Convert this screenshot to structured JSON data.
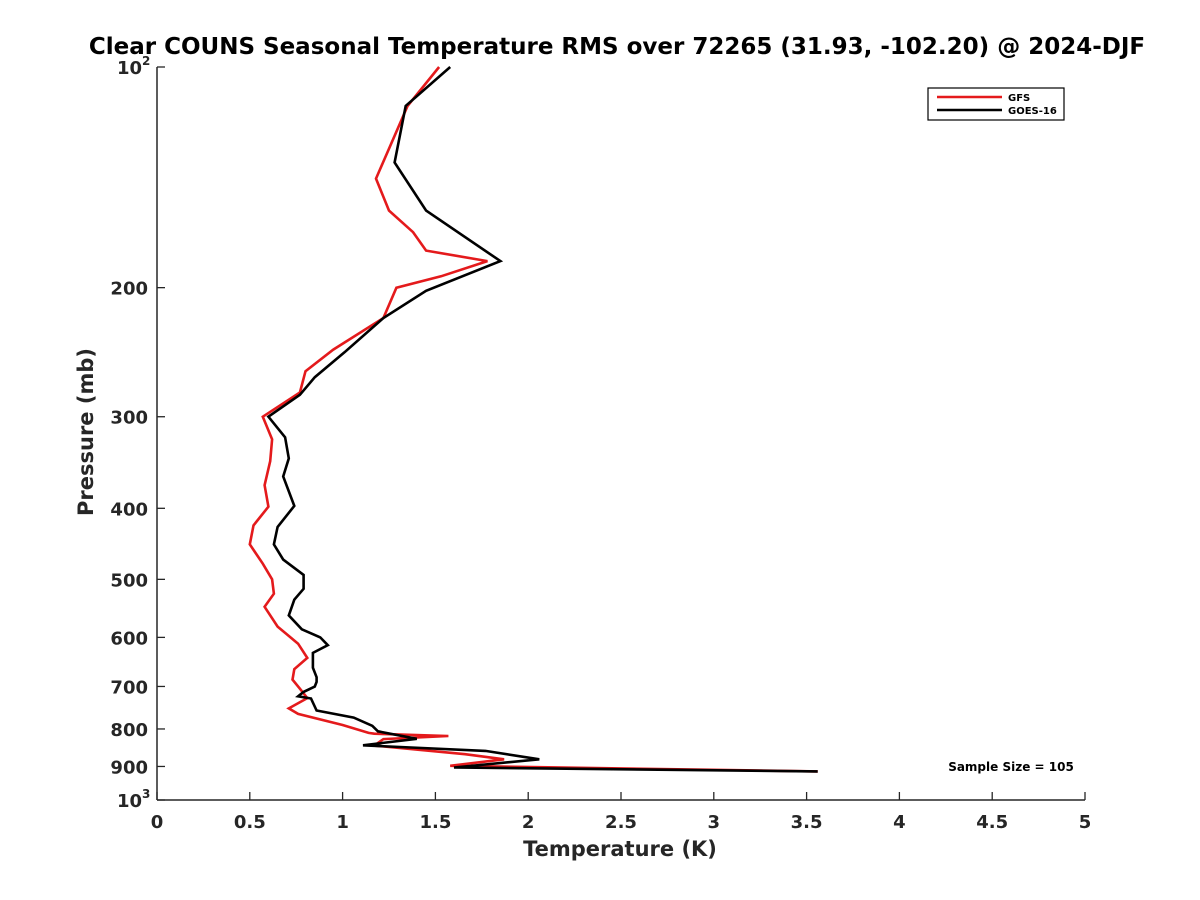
{
  "chart_data": {
    "type": "line",
    "title": "Clear COUNS Seasonal Temperature RMS over 72265 (31.93, -102.20) @ 2024-DJF",
    "xlabel": "Temperature (K)",
    "ylabel": "Pressure (mb)",
    "xlim": [
      0,
      5
    ],
    "ylim": [
      100,
      1000
    ],
    "y_scale": "log",
    "y_reversed": true,
    "x_ticks": [
      "0",
      "0.5",
      "1",
      "1.5",
      "2",
      "2.5",
      "3",
      "3.5",
      "4",
      "4.5",
      "5"
    ],
    "y_ticks": [
      {
        "value": 100,
        "base": "10",
        "exp": "2"
      },
      {
        "value": 200,
        "label": "200"
      },
      {
        "value": 300,
        "label": "300"
      },
      {
        "value": 400,
        "label": "400"
      },
      {
        "value": 500,
        "label": "500"
      },
      {
        "value": 600,
        "label": "600"
      },
      {
        "value": 700,
        "label": "700"
      },
      {
        "value": 800,
        "label": "800"
      },
      {
        "value": 900,
        "label": "900"
      },
      {
        "value": 1000,
        "base": "10",
        "exp": "3"
      }
    ],
    "legend_position": "top-right",
    "annotation": "Sample Size = 105",
    "series": [
      {
        "name": "GFS",
        "color": "#e41a1c",
        "x": [
          1.52,
          1.35,
          1.18,
          1.25,
          1.38,
          1.45,
          1.78,
          1.53,
          1.29,
          1.22,
          0.95,
          0.8,
          0.77,
          0.57,
          0.62,
          0.61,
          0.58,
          0.6,
          0.52,
          0.5,
          0.57,
          0.62,
          0.63,
          0.58,
          0.65,
          0.76,
          0.81,
          0.74,
          0.73,
          0.77,
          0.81,
          0.71,
          0.76,
          1.0,
          1.14,
          1.17,
          1.57,
          1.22,
          1.17,
          1.66,
          1.87,
          1.58,
          3.56
        ],
        "y": [
          100,
          113,
          142,
          157,
          168,
          178,
          184,
          193,
          200,
          220,
          243,
          260,
          278,
          300,
          322,
          345,
          372,
          398,
          422,
          448,
          476,
          500,
          523,
          545,
          580,
          612,
          640,
          663,
          685,
          705,
          726,
          750,
          763,
          790,
          810,
          812,
          818,
          826,
          843,
          866,
          880,
          898,
          914
        ]
      },
      {
        "name": "GOES-16",
        "color": "#000000",
        "x": [
          1.58,
          1.34,
          1.28,
          1.45,
          1.85,
          1.45,
          1.22,
          1.01,
          0.85,
          0.77,
          0.6,
          0.69,
          0.71,
          0.68,
          0.74,
          0.65,
          0.63,
          0.68,
          0.79,
          0.79,
          0.74,
          0.71,
          0.78,
          0.88,
          0.92,
          0.84,
          0.84,
          0.86,
          0.86,
          0.85,
          0.79,
          0.76,
          0.83,
          0.86,
          1.06,
          1.16,
          1.19,
          1.4,
          1.11,
          1.77,
          2.06,
          1.6,
          3.56
        ],
        "y": [
          100,
          113,
          135,
          157,
          184,
          202,
          220,
          245,
          265,
          280,
          300,
          320,
          342,
          362,
          397,
          424,
          448,
          470,
          493,
          515,
          533,
          560,
          585,
          600,
          615,
          630,
          660,
          680,
          690,
          700,
          712,
          722,
          727,
          755,
          772,
          792,
          806,
          825,
          842,
          857,
          880,
          903,
          914
        ]
      }
    ]
  }
}
